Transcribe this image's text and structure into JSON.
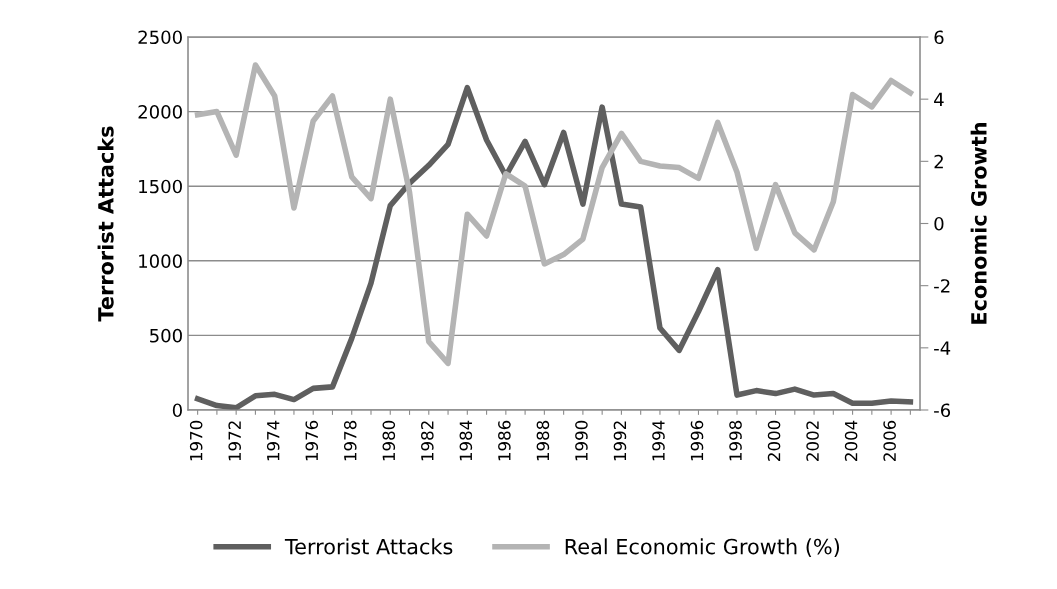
{
  "chart_data": {
    "type": "line",
    "categories": [
      "1970",
      null,
      "1972",
      null,
      "1974",
      null,
      "1976",
      null,
      "1978",
      null,
      "1980",
      null,
      "1982",
      null,
      "1984",
      null,
      "1986",
      null,
      "1988",
      null,
      "1990",
      null,
      "1992",
      null,
      "1994",
      null,
      "1996",
      null,
      "1998",
      null,
      "2000",
      null,
      "2002",
      null,
      "2004",
      null,
      "2006",
      null
    ],
    "series": [
      {
        "name": "Terrorist Attacks",
        "color": "#5f5f5f",
        "values": [
          75,
          30,
          15,
          95,
          105,
          70,
          145,
          155,
          480,
          850,
          1370,
          1520,
          1640,
          1780,
          2160,
          1810,
          1570,
          1800,
          1510,
          1860,
          1380,
          2030,
          1380,
          1360,
          550,
          400,
          660,
          940,
          100,
          130,
          110,
          140,
          100,
          110,
          45,
          45,
          60,
          55
        ]
      },
      {
        "name": "Real Economic Growth (%)",
        "color": "#b4b4b4",
        "axis": "y2",
        "values": [
          3.5,
          3.6,
          2.2,
          5.1,
          4.1,
          0.5,
          3.3,
          4.1,
          1.5,
          0.8,
          4.0,
          1.0,
          -3.8,
          -4.5,
          0.3,
          -0.4,
          1.6,
          1.2,
          -1.3,
          -1.0,
          -0.5,
          1.8,
          2.9,
          2.0,
          1.85,
          1.8,
          1.45,
          3.25,
          1.65,
          -0.8,
          1.25,
          -0.3,
          -0.85,
          0.7,
          4.15,
          3.75,
          4.6,
          4.2
        ]
      }
    ],
    "ylabel": "Terrorist Attacks",
    "y2label": "Economic Growth",
    "ylim": [
      0,
      2500
    ],
    "yticks": [
      0,
      500,
      1000,
      1500,
      2000,
      2500
    ],
    "y2lim": [
      -6,
      6
    ],
    "y2ticks": [
      -6,
      -4,
      -2,
      0,
      2,
      4,
      6
    ],
    "grid": "y",
    "legend": "bottom",
    "marker": "none",
    "line_style": "solid"
  }
}
